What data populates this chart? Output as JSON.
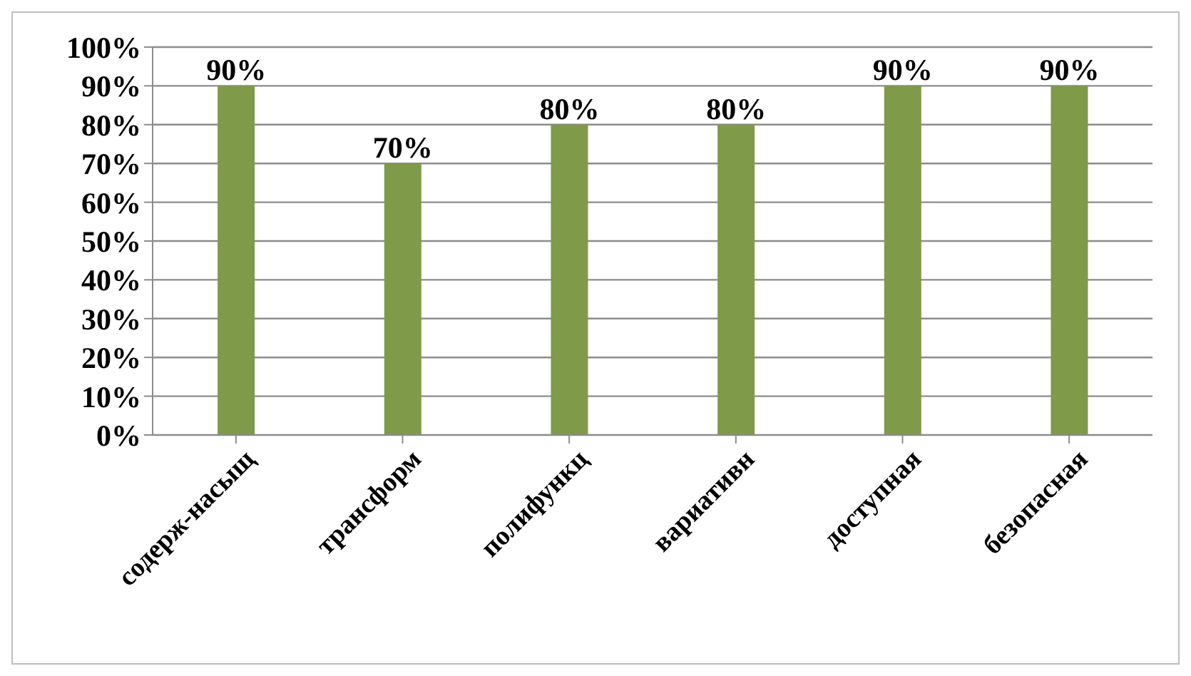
{
  "chart_data": {
    "type": "bar",
    "categories": [
      "содерж-насыщ",
      "трансформ",
      "полифункц",
      "вариативн",
      "доступная",
      "безопасная"
    ],
    "values": [
      90,
      70,
      80,
      80,
      90,
      90
    ],
    "value_labels": [
      "90%",
      "70%",
      "80%",
      "80%",
      "90%",
      "90%"
    ],
    "color": "#7f9a48",
    "ylim": [
      0,
      100
    ],
    "yticks": [
      {
        "value": 0,
        "label": "0%"
      },
      {
        "value": 10,
        "label": "10%"
      },
      {
        "value": 20,
        "label": "20%"
      },
      {
        "value": 30,
        "label": "30%"
      },
      {
        "value": 40,
        "label": "40%"
      },
      {
        "value": 50,
        "label": "50%"
      },
      {
        "value": 60,
        "label": "60%"
      },
      {
        "value": 70,
        "label": "70%"
      },
      {
        "value": 80,
        "label": "80%"
      },
      {
        "value": 90,
        "label": "90%"
      },
      {
        "value": 100,
        "label": "100%"
      }
    ],
    "grid": "y"
  }
}
